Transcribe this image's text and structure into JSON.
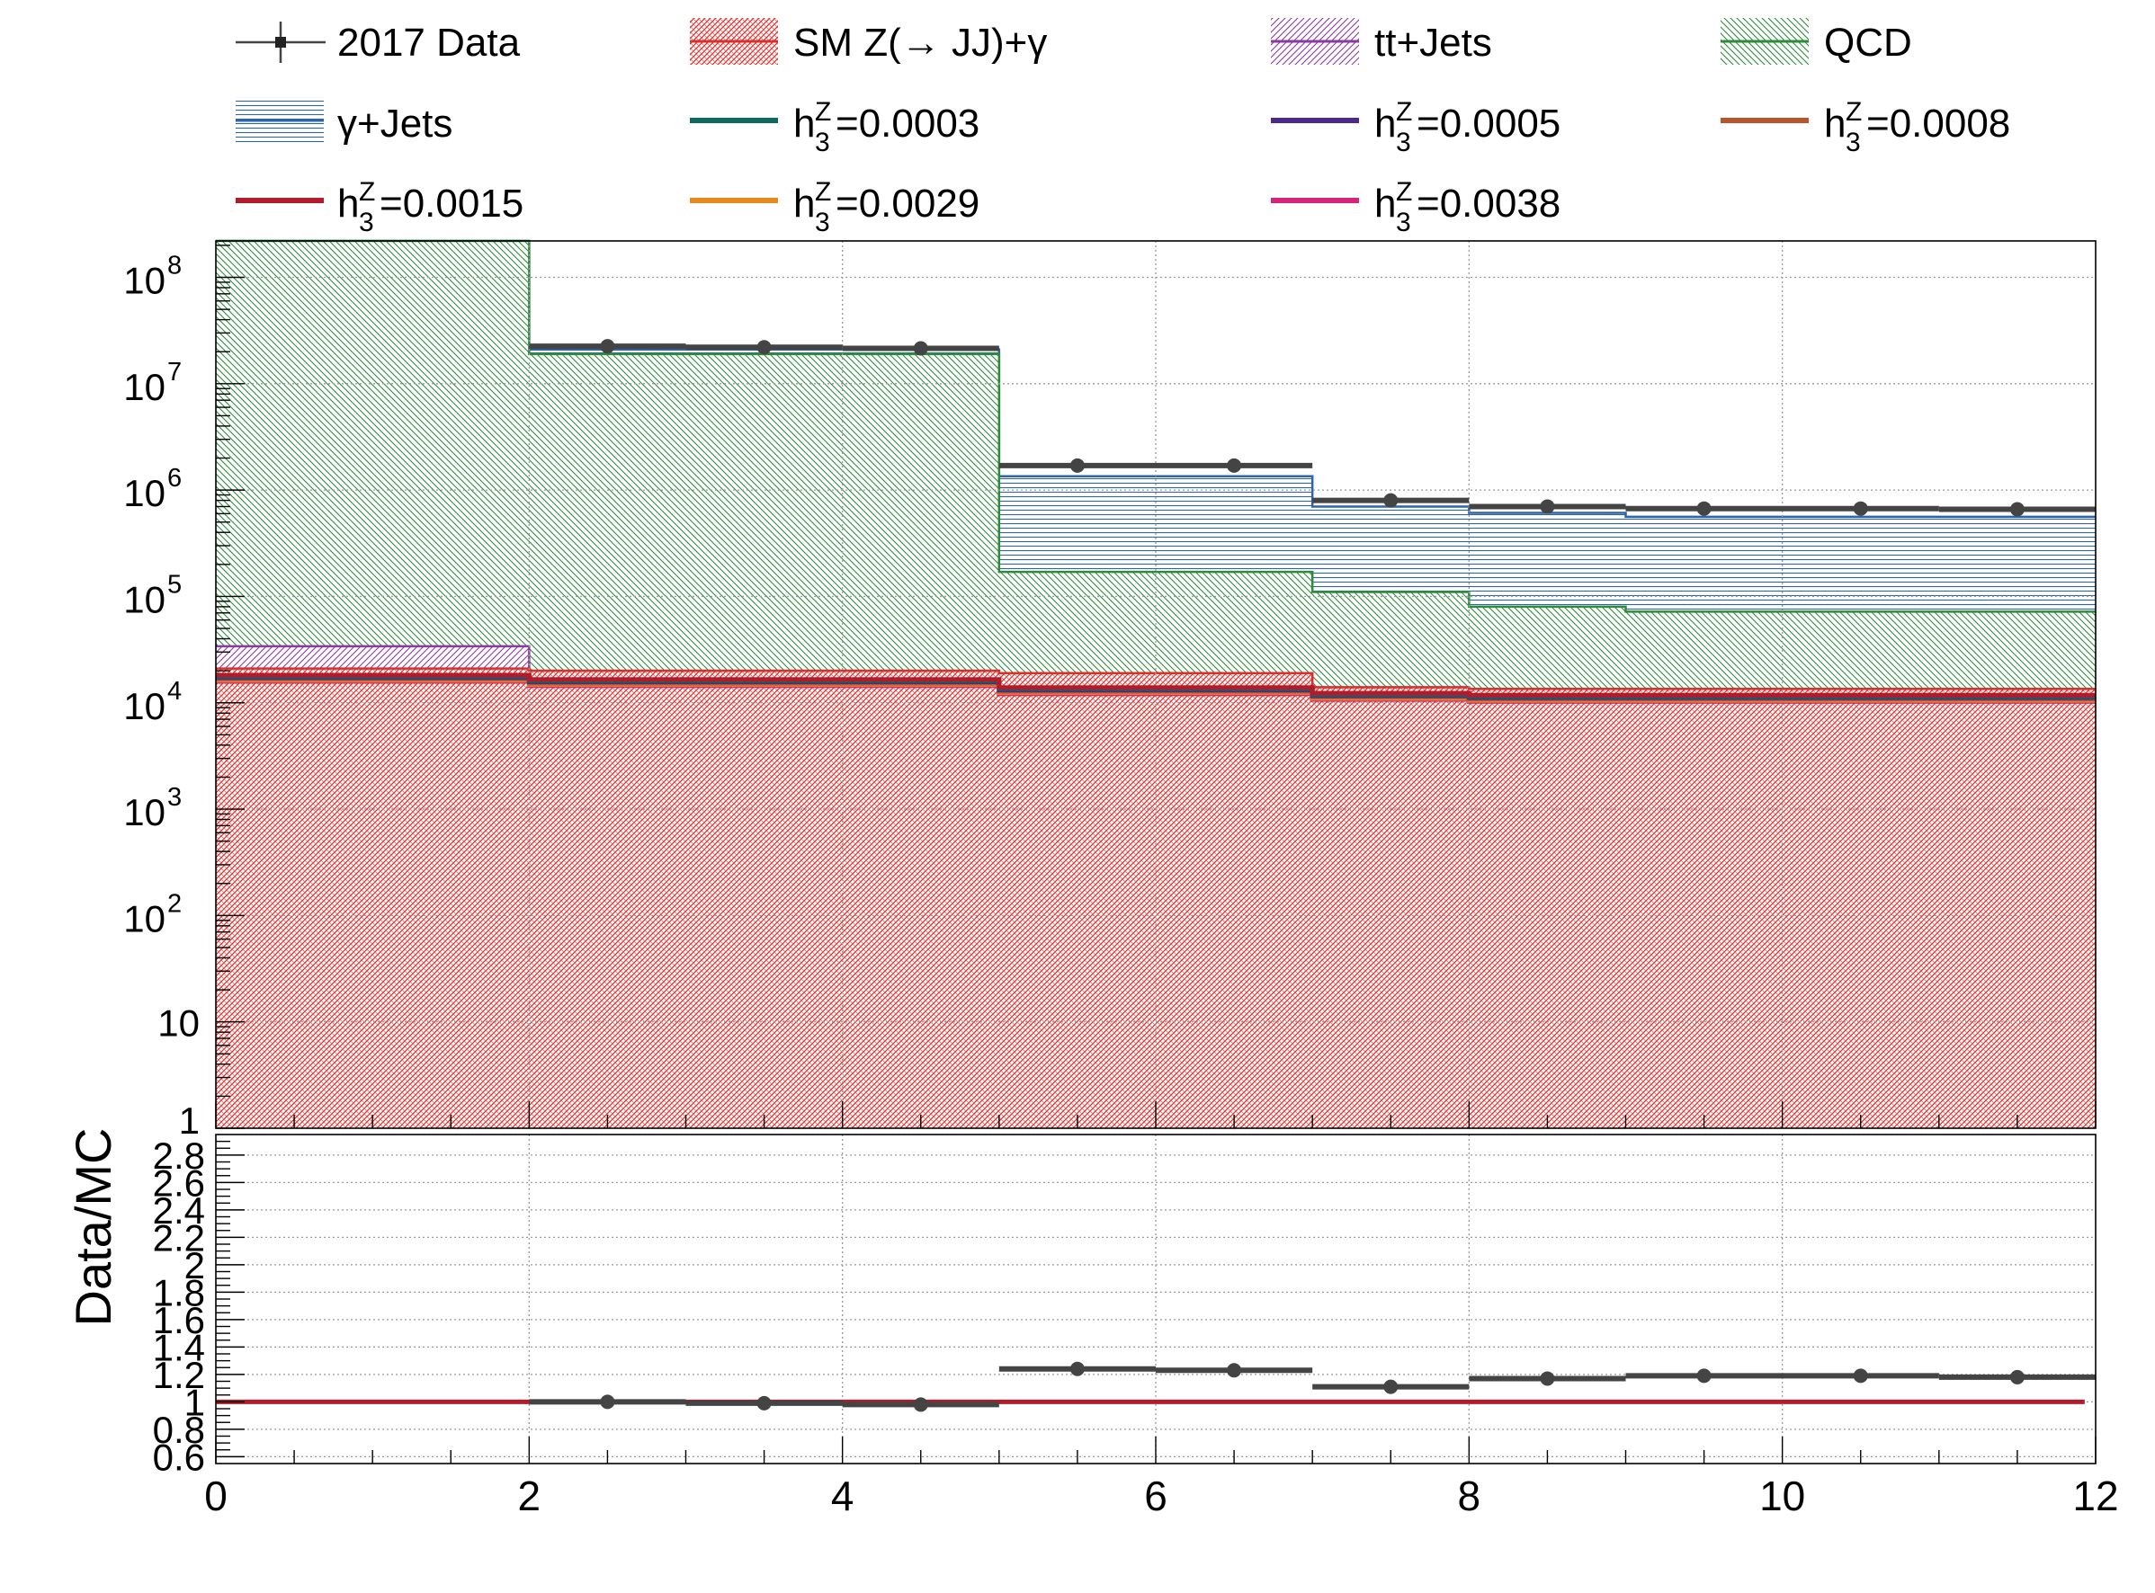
{
  "colors": {
    "data": "#444444",
    "sm": "#d9302c",
    "tt": "#8a3aa0",
    "qcd": "#2e8b3a",
    "gjets": "#2f64a8",
    "h0003": "#0b6b5f",
    "h0005": "#4b2991",
    "h0008": "#b9552a",
    "h0015": "#b31b2a",
    "h0029": "#e8891e",
    "h0038": "#d6247a"
  },
  "legend": {
    "data": "2017 Data",
    "sm": "SM Z(→ JJ)+γ",
    "tt": "tt+Jets",
    "qcd": "QCD",
    "gjets": "γ+Jets",
    "h_sub": "3",
    "h_sup": "Z",
    "h_base": "h",
    "h0003": "=0.0003",
    "h0005": "=0.0005",
    "h0008": "=0.0008",
    "h0015": "=0.0015",
    "h0029": "=0.0029",
    "h0038": "=0.0038"
  },
  "chart_data": [
    {
      "type": "bar",
      "scale": "log",
      "title": "",
      "xlabel": "",
      "ylabel": "",
      "xlim": [
        0,
        12
      ],
      "ylim": [
        1,
        220000000
      ],
      "bins": [
        [
          0,
          2
        ],
        [
          2,
          5
        ],
        [
          5,
          7
        ],
        [
          7,
          8
        ],
        [
          8,
          12
        ]
      ],
      "stack": [
        {
          "name": "SM Z(→ JJ)+γ",
          "key": "sm",
          "values": [
            21000,
            18000,
            15000,
            13000,
            12000
          ]
        },
        {
          "name": "tt+Jets",
          "key": "tt",
          "values": [
            15000,
            0,
            0,
            0,
            0
          ]
        },
        {
          "name": "QCD",
          "key": "qcd",
          "values": [
            220000000,
            19000000,
            170000,
            110000,
            [
              80000,
              72000,
              72000,
              72000
            ]
          ]
        },
        {
          "name": "γ+Jets",
          "key": "gjets",
          "values": [
            0,
            1500000,
            1200000,
            500000,
            [
              500000,
              480000,
              490000,
              480000
            ]
          ]
        }
      ],
      "qcd_top": [
        220000000,
        19000000,
        170000,
        110000,
        80000,
        72000,
        72000,
        72000
      ],
      "qcd_edges": [
        0,
        2,
        5,
        7,
        8,
        9,
        10,
        11,
        12
      ],
      "gjets_top": [
        220000000,
        21000000,
        1350000,
        700000,
        610000,
        560000,
        560000,
        560000
      ],
      "ttjets_top": [
        34000,
        20000,
        19000,
        14000,
        13500,
        13500,
        13500,
        13500
      ],
      "sm_top": [
        21000,
        20000,
        19000,
        14000,
        13500,
        13500,
        13500,
        13500
      ],
      "signal_lines": {
        "edges": [
          0,
          2,
          5,
          7,
          8,
          12
        ],
        "values": [
          17000,
          15500,
          13000,
          11500,
          11000
        ]
      },
      "yticks": [
        "1",
        "10",
        "10^2",
        "10^3",
        "10^4",
        "10^5",
        "10^6",
        "10^7",
        "10^8"
      ],
      "data_points": {
        "x": [
          2.5,
          3.5,
          4.5,
          5.5,
          6.5,
          7.5,
          8.5,
          9.5,
          10.5,
          11.5
        ],
        "y": [
          22500000,
          22000000,
          21500000,
          1700000,
          1700000,
          800000,
          700000,
          670000,
          670000,
          660000
        ],
        "xerr": [
          0.5,
          0.5,
          0.5,
          0.5,
          0.5,
          0.5,
          0.5,
          0.5,
          0.5,
          0.5
        ]
      },
      "data_segments": [
        [
          2,
          3,
          22500000
        ],
        [
          3,
          4,
          22000000
        ],
        [
          4,
          5,
          21500000
        ],
        [
          5,
          7,
          1700000
        ],
        [
          7,
          8,
          800000
        ],
        [
          8,
          9,
          700000
        ],
        [
          9,
          11,
          670000
        ],
        [
          11,
          12,
          660000
        ]
      ]
    },
    {
      "type": "scatter",
      "title": "",
      "xlabel": "",
      "ylabel": "Data/MC",
      "xlim": [
        0,
        12
      ],
      "ylim": [
        0.55,
        2.95
      ],
      "yticks": [
        "0.6",
        "0.8",
        "1",
        "1.2",
        "1.4",
        "1.6",
        "1.8",
        "2",
        "2.2",
        "2.4",
        "2.6",
        "2.8"
      ],
      "xticks": [
        "0",
        "2",
        "4",
        "6",
        "8",
        "10",
        "12"
      ],
      "ratio_points": {
        "x": [
          2.5,
          3.5,
          4.5,
          5.5,
          6.5,
          7.5,
          8.5,
          9.5,
          10.5,
          11.5
        ],
        "y": [
          1.0,
          0.99,
          0.98,
          1.24,
          1.23,
          1.11,
          1.17,
          1.19,
          1.19,
          1.18
        ]
      },
      "ratio_segments": [
        [
          2,
          3,
          1.0
        ],
        [
          3,
          4,
          0.99
        ],
        [
          4,
          5,
          0.98
        ],
        [
          5,
          6,
          1.24
        ],
        [
          6,
          7,
          1.23
        ],
        [
          7,
          8,
          1.11
        ],
        [
          8,
          9,
          1.17
        ],
        [
          9,
          11,
          1.19
        ],
        [
          11,
          12,
          1.18
        ]
      ],
      "reference_line": 1.0
    }
  ]
}
